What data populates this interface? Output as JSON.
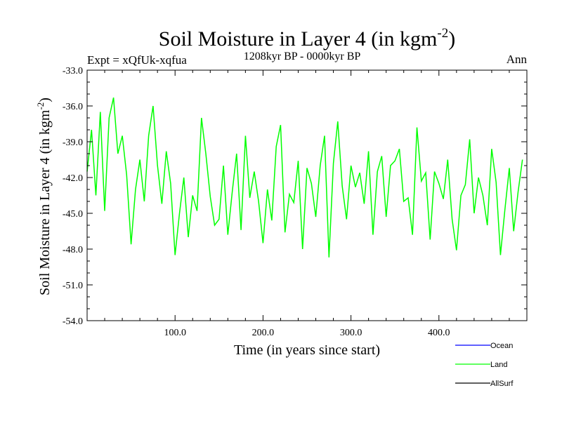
{
  "chart_data": {
    "type": "line",
    "title": "Soil Moisture in Layer 4 (in kgm",
    "title_superscript": "-2",
    "title_suffix": ")",
    "subtitle_left": "Expt = xQfUk-xqfua",
    "subtitle_center": "1208kyr BP - 0000kyr BP",
    "subtitle_right": "Ann",
    "xlabel": "Time (in years since start)",
    "ylabel": "Soil Moisture in Layer 4 (in kgm",
    "ylabel_superscript": "-2",
    "ylabel_suffix": ")",
    "xlim": [
      0,
      500
    ],
    "ylim": [
      -54.0,
      -33.0
    ],
    "x_ticks": [
      100,
      200,
      300,
      400
    ],
    "x_tick_labels": [
      "100.0",
      "200.0",
      "300.0",
      "400.0"
    ],
    "y_ticks": [
      -33,
      -36,
      -39,
      -42,
      -45,
      -48,
      -51,
      -54
    ],
    "y_tick_labels": [
      "-33.0",
      "-36.0",
      "-39.0",
      "-42.0",
      "-45.0",
      "-48.0",
      "-51.0",
      "-54.0"
    ],
    "legend": [
      {
        "name": "Ocean",
        "color": "#0000ff"
      },
      {
        "name": "Land",
        "color": "#00ff00"
      },
      {
        "name": "AllSurf",
        "color": "#000000"
      }
    ],
    "series": [
      {
        "name": "Land",
        "color": "#00ff00",
        "x_start": 0,
        "x_step": 5,
        "values": [
          -41.5,
          -38.0,
          -43.5,
          -36.5,
          -44.8,
          -37.0,
          -35.3,
          -40.0,
          -38.5,
          -41.8,
          -47.6,
          -43.0,
          -40.5,
          -44.0,
          -38.5,
          -36.0,
          -41.0,
          -44.2,
          -39.8,
          -42.5,
          -48.5,
          -45.0,
          -42.0,
          -47.0,
          -43.5,
          -44.8,
          -37.0,
          -40.0,
          -43.6,
          -46.0,
          -45.5,
          -41.0,
          -46.8,
          -43.2,
          -40.0,
          -46.4,
          -38.5,
          -43.7,
          -41.5,
          -44.0,
          -47.5,
          -43.0,
          -45.6,
          -39.4,
          -37.6,
          -46.6,
          -43.4,
          -44.1,
          -40.6,
          -48.0,
          -41.2,
          -42.5,
          -45.3,
          -41.0,
          -38.5,
          -48.7,
          -40.8,
          -37.3,
          -42.7,
          -45.5,
          -41.0,
          -42.8,
          -41.6,
          -44.2,
          -39.8,
          -46.8,
          -41.5,
          -40.2,
          -45.3,
          -41.0,
          -40.6,
          -39.6,
          -44.0,
          -43.7,
          -46.8,
          -37.8,
          -42.3,
          -41.6,
          -47.2,
          -41.5,
          -42.5,
          -43.8,
          -40.5,
          -45.5,
          -48.1,
          -43.5,
          -42.6,
          -38.8,
          -45.0,
          -42.0,
          -43.5,
          -46.0,
          -39.6,
          -42.4,
          -48.5,
          -44.7,
          -41.2,
          -46.5,
          -43.2,
          -40.5
        ]
      }
    ]
  }
}
